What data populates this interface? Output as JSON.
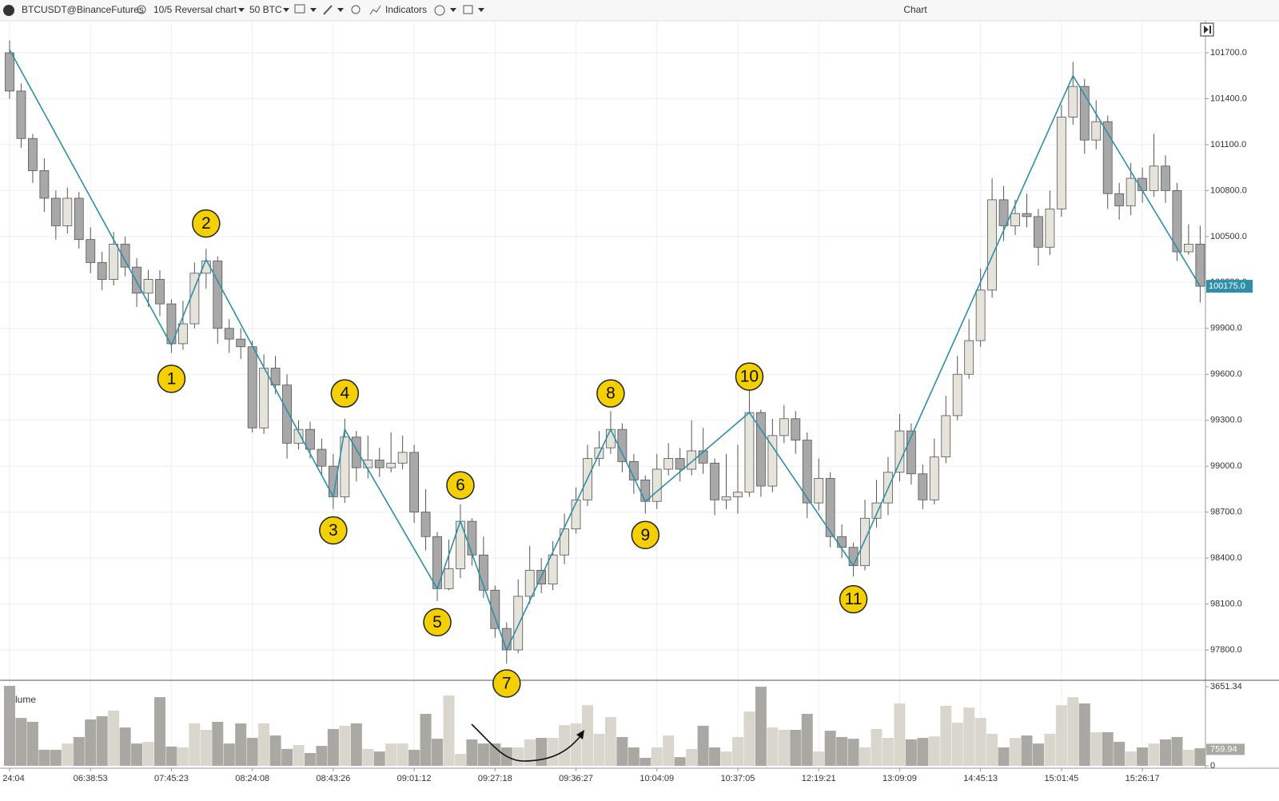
{
  "toolbar": {
    "symbol": "BTCUSDT@BinanceFutures",
    "chart_type": "10/5 Reversal chart",
    "volume_unit": "50 BTC",
    "indicators": "Indicators",
    "title": "Chart"
  },
  "chart_data": {
    "type": "candlestick",
    "categories": [
      "24:04",
      null,
      null,
      null,
      null,
      null,
      null,
      "06:38:53",
      null,
      null,
      null,
      null,
      null,
      null,
      "07:45:23",
      null,
      null,
      null,
      null,
      null,
      null,
      "08:24:08",
      null,
      null,
      null,
      null,
      null,
      null,
      "08:43:26",
      null,
      null,
      null,
      null,
      null,
      null,
      "09:01:12",
      null,
      null,
      null,
      null,
      null,
      null,
      "09:27:18",
      null,
      null,
      null,
      null,
      null,
      null,
      "09:36:27",
      null,
      null,
      null,
      null,
      null,
      null,
      "10:04:09",
      null,
      null,
      null,
      null,
      null,
      null,
      "10:37:05",
      null,
      null,
      null,
      null,
      null,
      null,
      "12:19:21",
      null,
      null,
      null,
      null,
      null,
      null,
      "13:09:09",
      null,
      null,
      null,
      null,
      null,
      null,
      "14:45:13",
      null,
      null,
      null,
      null,
      null,
      null,
      "15:01:45",
      null,
      null,
      null,
      null,
      null,
      null,
      "15:26:17",
      null,
      null,
      null,
      null,
      null
    ],
    "open": [
      101700,
      101450,
      101140,
      100930,
      100750,
      100570,
      100750,
      100480,
      100330,
      100220,
      100450,
      100300,
      100130,
      100220,
      100060,
      99800,
      99930,
      100260,
      100340,
      99900,
      99830,
      99780,
      99250,
      99640,
      99530,
      99150,
      99240,
      99110,
      99000,
      98800,
      99190,
      98990,
      99040,
      98990,
      99020,
      99090,
      98700,
      98540,
      98200,
      98330,
      98640,
      98420,
      98190,
      97940,
      97800,
      98150,
      98320,
      98230,
      98420,
      98590,
      98780,
      99050,
      99120,
      99240,
      99030,
      98910,
      98770,
      98980,
      99050,
      98980,
      99100,
      99020,
      98780,
      98800,
      98830,
      99350,
      98870,
      99200,
      99310,
      99170,
      98760,
      98920,
      98540,
      98470,
      98350,
      98660,
      98760,
      98960,
      99230,
      98950,
      98780,
      99060,
      99330,
      99600,
      99820,
      100150,
      100740,
      100570,
      100650,
      100630,
      100430,
      100680,
      101280,
      101480,
      101130,
      101250,
      100780,
      100700,
      100880,
      100800,
      100960,
      100800,
      100400,
      100450
    ],
    "high": [
      101780,
      101500,
      101170,
      101010,
      100800,
      100820,
      100790,
      100560,
      100400,
      100530,
      100500,
      100360,
      100280,
      100280,
      100090,
      100080,
      100330,
      100420,
      100370,
      99960,
      99900,
      99820,
      99730,
      99720,
      99600,
      99300,
      99290,
      99180,
      99080,
      99310,
      99230,
      99200,
      99120,
      99220,
      99200,
      99140,
      98850,
      98570,
      98520,
      98750,
      98660,
      98540,
      98220,
      97980,
      98260,
      98480,
      98400,
      98510,
      98690,
      98860,
      99140,
      99230,
      99360,
      99280,
      99080,
      98940,
      99080,
      99150,
      99120,
      99300,
      99250,
      99050,
      99080,
      99140,
      99500,
      99370,
      99310,
      99400,
      99360,
      99220,
      99050,
      98960,
      98620,
      98500,
      98780,
      98910,
      99060,
      99340,
      99280,
      99010,
      99180,
      99460,
      99720,
      99960,
      100290,
      100880,
      100830,
      100740,
      100780,
      100680,
      100800,
      101360,
      101640,
      101530,
      101390,
      101290,
      100850,
      100980,
      100950,
      101170,
      101030,
      100850,
      100580,
      100570
    ],
    "low": [
      101400,
      101080,
      100850,
      100660,
      100480,
      100520,
      100420,
      100260,
      100150,
      100180,
      100240,
      100040,
      100040,
      99980,
      99740,
      99760,
      99900,
      100160,
      99800,
      99740,
      99700,
      99220,
      99210,
      99470,
      99050,
      99110,
      99050,
      98950,
      98720,
      98760,
      98900,
      98920,
      98930,
      98960,
      98980,
      98630,
      98450,
      98120,
      98190,
      98270,
      98350,
      98140,
      97880,
      97710,
      97780,
      98100,
      98170,
      98190,
      98360,
      98560,
      98740,
      99000,
      99080,
      98960,
      98820,
      98690,
      98720,
      98940,
      98900,
      98940,
      98950,
      98680,
      98720,
      98690,
      98800,
      98800,
      98830,
      99150,
      99080,
      98660,
      98710,
      98470,
      98400,
      98280,
      98320,
      98600,
      98680,
      98900,
      98880,
      98720,
      98750,
      99020,
      99300,
      99570,
      99780,
      100100,
      100470,
      100510,
      100560,
      100310,
      100380,
      100630,
      101230,
      101040,
      101070,
      100680,
      100610,
      100640,
      100720,
      100760,
      100720,
      100340,
      100380,
      100070
    ],
    "close": [
      101450,
      101140,
      100930,
      100750,
      100570,
      100750,
      100480,
      100330,
      100220,
      100450,
      100300,
      100130,
      100220,
      100060,
      99800,
      99930,
      100260,
      100340,
      99900,
      99830,
      99780,
      99250,
      99640,
      99530,
      99150,
      99240,
      99110,
      99000,
      98800,
      99190,
      98990,
      99040,
      98990,
      99020,
      99090,
      98700,
      98540,
      98200,
      98330,
      98640,
      98420,
      98190,
      97940,
      97800,
      98150,
      98320,
      98230,
      98420,
      98590,
      98780,
      99050,
      99120,
      99240,
      99030,
      98910,
      98770,
      98980,
      99050,
      98980,
      99100,
      99020,
      98780,
      98800,
      98830,
      99350,
      98870,
      99200,
      99310,
      99170,
      98760,
      98920,
      98540,
      98470,
      98350,
      98660,
      98760,
      98960,
      99230,
      98950,
      98780,
      99060,
      99330,
      99600,
      99820,
      100150,
      100740,
      100570,
      100650,
      100630,
      100430,
      100680,
      101280,
      101480,
      101130,
      101250,
      100780,
      100700,
      100880,
      100800,
      100960,
      100800,
      100400,
      100450,
      100175
    ],
    "up_color": "#e6e4da",
    "down_color": "#a8a8a8",
    "ylim": [
      97600,
      101900
    ],
    "yticks": [
      {
        "value": 97800,
        "label": "97800.0"
      },
      {
        "value": 98100,
        "label": "98100.0"
      },
      {
        "value": 98400,
        "label": "98400.0"
      },
      {
        "value": 98700,
        "label": "98700.0"
      },
      {
        "value": 99000,
        "label": "99000.0"
      },
      {
        "value": 99300,
        "label": "99300.0"
      },
      {
        "value": 99600,
        "label": "99600.0"
      },
      {
        "value": 99900,
        "label": "99900.0"
      },
      {
        "value": 100200,
        "label": "100200.0"
      },
      {
        "value": 100500,
        "label": "100500.0"
      },
      {
        "value": 100800,
        "label": "100800.0"
      },
      {
        "value": 101100,
        "label": "101100.0"
      },
      {
        "value": 101400,
        "label": "101400.0"
      },
      {
        "value": 101700,
        "label": "101700.0"
      }
    ],
    "grid": true,
    "last_price": {
      "value": 100175,
      "label": "100175.0"
    },
    "zigzag": {
      "color": "#2e8fa8",
      "x": [
        0,
        14,
        17,
        28,
        29,
        37,
        39,
        43,
        52,
        55,
        64,
        73,
        92,
        103
      ],
      "values": [
        101720,
        99790,
        100350,
        98800,
        99240,
        98200,
        98640,
        97800,
        99240,
        98770,
        99350,
        98350,
        101550,
        100175
      ],
      "labels": [
        null,
        "1",
        "2",
        "3",
        "4",
        "5",
        "6",
        "7",
        "8",
        "9",
        "10",
        "11",
        null,
        null
      ]
    },
    "volume": {
      "name": "Volume",
      "up_color": "#d9d7cd",
      "down_color": "#a9a8a3",
      "ylim": [
        0,
        3900
      ],
      "yticks": [
        0,
        759.94,
        3651.34
      ],
      "values": [
        3690,
        2210,
        2030,
        740,
        740,
        1030,
        1330,
        2140,
        2290,
        2550,
        1770,
        1030,
        1110,
        3170,
        890,
        850,
        1960,
        1660,
        2030,
        1030,
        1960,
        1290,
        1960,
        1400,
        780,
        960,
        590,
        920,
        1700,
        1850,
        1960,
        780,
        660,
        1030,
        1030,
        740,
        2400,
        1250,
        3250,
        550,
        1220,
        1030,
        1030,
        850,
        850,
        1220,
        1290,
        1290,
        1880,
        1960,
        2800,
        1480,
        2250,
        1330,
        850,
        370,
        850,
        1400,
        400,
        780,
        1850,
        850,
        660,
        1330,
        2510,
        3651.34,
        1770,
        1660,
        1660,
        2400,
        660,
        1620,
        1330,
        1250,
        850,
        1700,
        1290,
        2880,
        1220,
        1290,
        1360,
        2770,
        1990,
        2690,
        2210,
        1480,
        850,
        1290,
        1400,
        1030,
        1480,
        2800,
        3170,
        2880,
        1550,
        1550,
        1110,
        660,
        850,
        1030,
        1220,
        1330,
        740,
        810
      ]
    }
  }
}
